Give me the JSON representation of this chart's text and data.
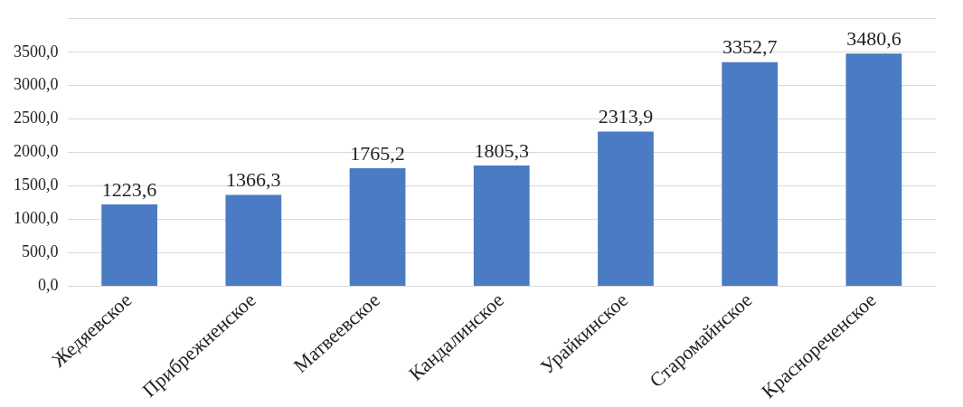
{
  "chart_data": {
    "type": "bar",
    "categories": [
      "Жедяевское",
      "Прибрежненское",
      "Матвеевское",
      "Кандалинское",
      "Урайкинское",
      "Старомайнское",
      "Краснореченское"
    ],
    "values": [
      1223.6,
      1366.3,
      1765.2,
      1805.3,
      2313.9,
      3352.7,
      3480.6
    ],
    "value_labels": [
      "1223,6",
      "1366,3",
      "1765,2",
      "1805,3",
      "2313,9",
      "3352,7",
      "3480,6"
    ],
    "color": "#4a7bc4",
    "ylim": [
      0,
      4000
    ],
    "yticks": [
      {
        "value": 0,
        "label": "0,0"
      },
      {
        "value": 500,
        "label": "500,0"
      },
      {
        "value": 1000,
        "label": "1000,0"
      },
      {
        "value": 1500,
        "label": "1500,0"
      },
      {
        "value": 2000,
        "label": "2000,0"
      },
      {
        "value": 2500,
        "label": "2500,0"
      },
      {
        "value": 3000,
        "label": "3000,0"
      },
      {
        "value": 3500,
        "label": "3500,0"
      },
      {
        "value": 4000,
        "label": null
      }
    ],
    "grid": "y",
    "legend": false
  }
}
